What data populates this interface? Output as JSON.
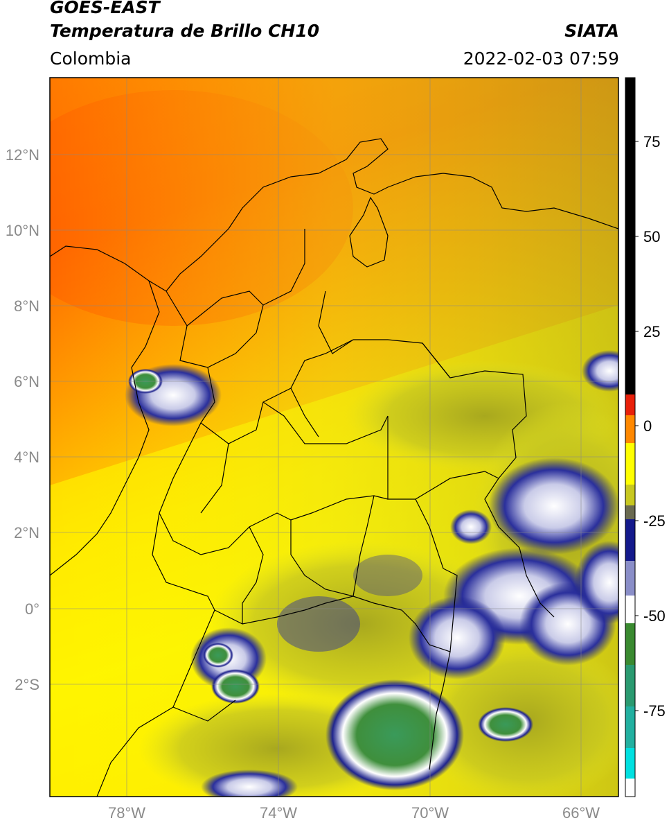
{
  "header": {
    "satellite": "GOES-EAST",
    "product": "Temperatura de Brillo CH10",
    "source": "SIATA",
    "region": "Colombia",
    "timestamp": "2022-02-03 07:59"
  },
  "map": {
    "lat_ticks": [
      "12°N",
      "10°N",
      "8°N",
      "6°N",
      "4°N",
      "2°N",
      "0°",
      "2°S"
    ],
    "lon_ticks": [
      "78°W",
      "74°W",
      "70°W",
      "66°W"
    ]
  },
  "colorbar": {
    "tick_labels": [
      "75",
      "50",
      "25",
      "0",
      "-25",
      "-50",
      "-75"
    ],
    "colors": {
      "black": "#000000",
      "red": "#e8200a",
      "orange": "#ff8800",
      "yellow": "#ffff00",
      "olive": "#a8a81e",
      "navy": "#141a8c",
      "white": "#ffffff",
      "green": "#3a8a30",
      "teal": "#22b0a0",
      "cyan": "#00e0e0"
    }
  }
}
